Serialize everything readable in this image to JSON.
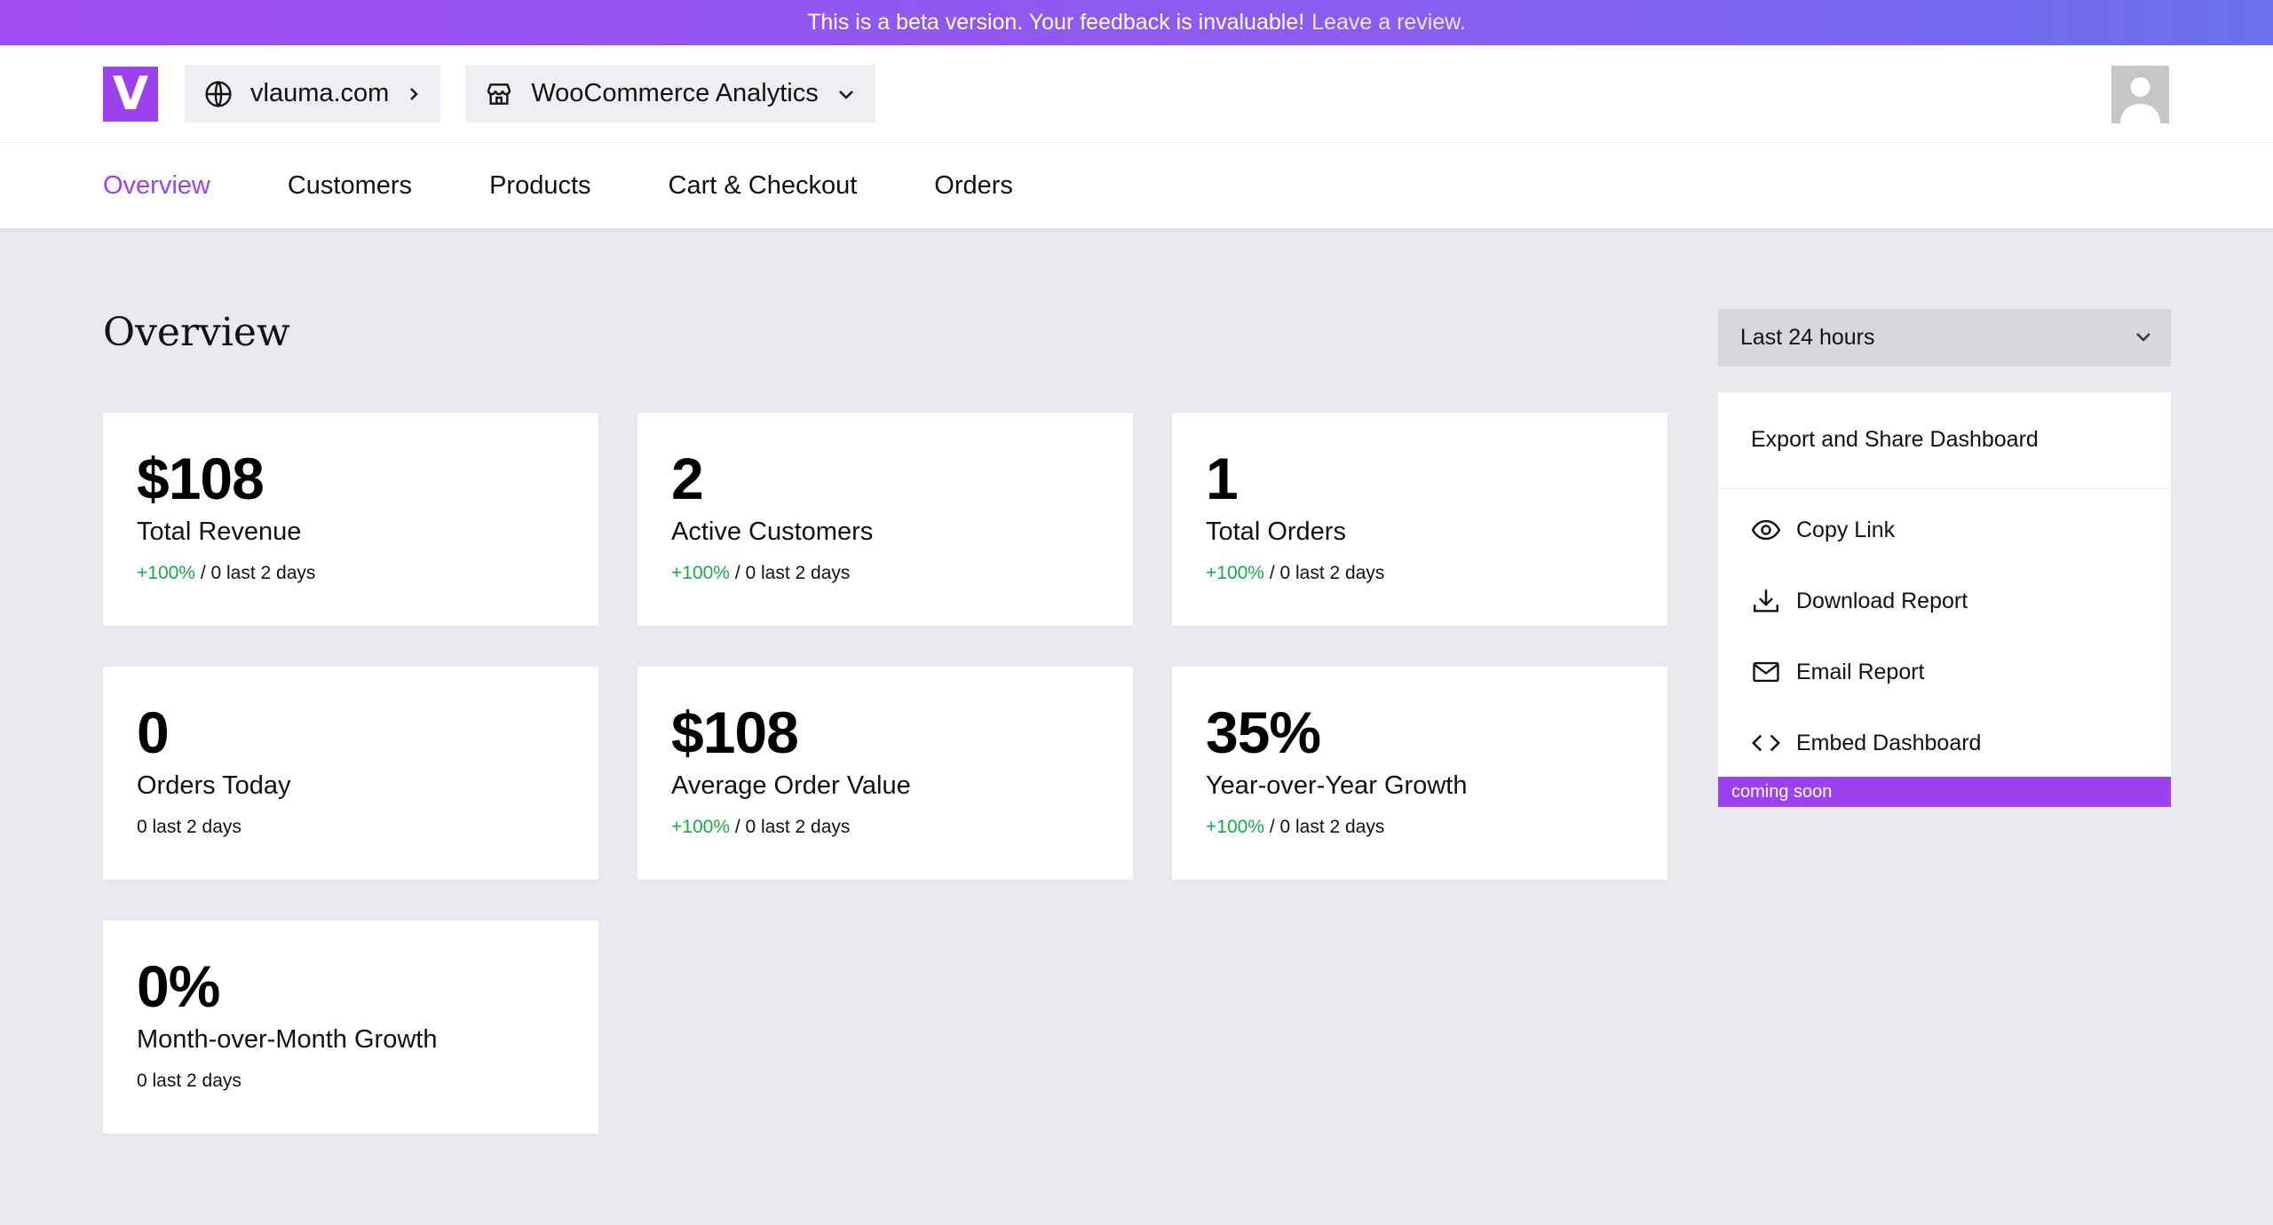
{
  "banner": {
    "text": "This is a beta version. Your feedback is invaluable!",
    "link": "Leave a review."
  },
  "header": {
    "logo_letter": "V",
    "site": "vlauma.com",
    "analytics": "WooCommerce Analytics"
  },
  "nav": {
    "items": [
      "Overview",
      "Customers",
      "Products",
      "Cart & Checkout",
      "Orders"
    ],
    "active": "Overview"
  },
  "main": {
    "title": "Overview"
  },
  "cards": [
    {
      "value": "$108",
      "label": "Total Revenue",
      "pct": "+100%",
      "rest": " / 0 last 2 days"
    },
    {
      "value": "2",
      "label": "Active Customers",
      "pct": "+100%",
      "rest": " / 0 last 2 days"
    },
    {
      "value": "1",
      "label": "Total Orders",
      "pct": "+100%",
      "rest": " / 0 last 2 days"
    },
    {
      "value": "0",
      "label": "Orders Today",
      "pct": "",
      "rest": "0 last 2 days"
    },
    {
      "value": "$108",
      "label": "Average Order Value",
      "pct": "+100%",
      "rest": " / 0 last 2 days"
    },
    {
      "value": "35%",
      "label": "Year-over-Year Growth",
      "pct": "+100%",
      "rest": " / 0 last 2 days"
    },
    {
      "value": "0%",
      "label": "Month-over-Month Growth",
      "pct": "",
      "rest": "0 last 2 days"
    }
  ],
  "range": {
    "selected": "Last 24 hours"
  },
  "share": {
    "title": "Export and Share Dashboard",
    "items": [
      {
        "label": "Copy Link",
        "icon": "eye-icon"
      },
      {
        "label": "Download Report",
        "icon": "download-icon"
      },
      {
        "label": "Email Report",
        "icon": "mail-icon"
      },
      {
        "label": "Embed Dashboard",
        "icon": "code-icon"
      }
    ],
    "badge": "coming soon"
  },
  "colors": {
    "accent": "#9b42ee",
    "positive": "#1aa84a",
    "background": "#e9eaee"
  }
}
